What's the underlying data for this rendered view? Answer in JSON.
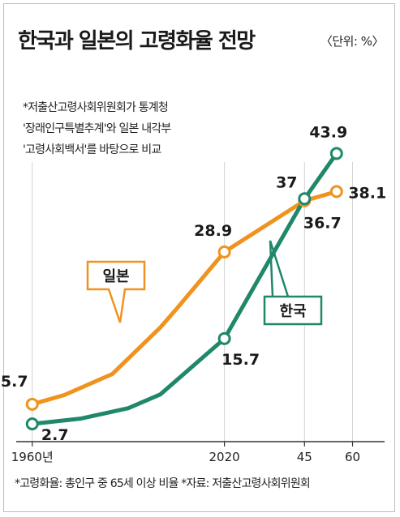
{
  "title": "한국과 일본의 고령화율 전망",
  "unit": "〈단위: %〉",
  "notes": [
    "*저출산고령사회위원회가 통계청",
    "'장래인구특별추계'와 일본 내각부",
    "'고령사회백서'를 바탕으로 비교"
  ],
  "footer": "*고령화율: 총인구 중 65세 이상 비율  *자료: 저출산고령사회위원회",
  "colors": {
    "japan": "#f0931e",
    "korea": "#20886a"
  },
  "chart_data": {
    "type": "line",
    "x_tick_labels": [
      "1960년",
      "2020",
      "45",
      "60"
    ],
    "x_ticks": [
      1960,
      2020,
      2045,
      2060
    ],
    "xlim": [
      1955,
      2070
    ],
    "ylim": [
      0,
      50
    ],
    "series": [
      {
        "name": "일본",
        "color": "#f0931e",
        "x": [
          1960,
          1970,
          1985,
          2000,
          2005,
          2020,
          2045,
          2055
        ],
        "y": [
          5.7,
          7.1,
          10.3,
          17.4,
          20.2,
          28.9,
          36.7,
          38.1
        ],
        "markers": [
          0,
          5,
          6,
          7
        ],
        "labels": [
          {
            "index": 0,
            "text": "5.7"
          },
          {
            "index": 5,
            "text": "28.9"
          },
          {
            "index": 6,
            "text": "36.7"
          },
          {
            "index": 7,
            "text": "38.1"
          }
        ]
      },
      {
        "name": "한국",
        "color": "#20886a",
        "x": [
          1960,
          1975,
          1990,
          2000,
          2020,
          2045,
          2055
        ],
        "y": [
          2.7,
          3.5,
          5.1,
          7.2,
          15.7,
          37,
          43.9
        ],
        "markers": [
          0,
          4,
          5,
          6
        ],
        "labels": [
          {
            "index": 0,
            "text": "2.7"
          },
          {
            "index": 4,
            "text": "15.7"
          },
          {
            "index": 5,
            "text": "37"
          },
          {
            "index": 6,
            "text": "43.9"
          }
        ]
      }
    ]
  }
}
